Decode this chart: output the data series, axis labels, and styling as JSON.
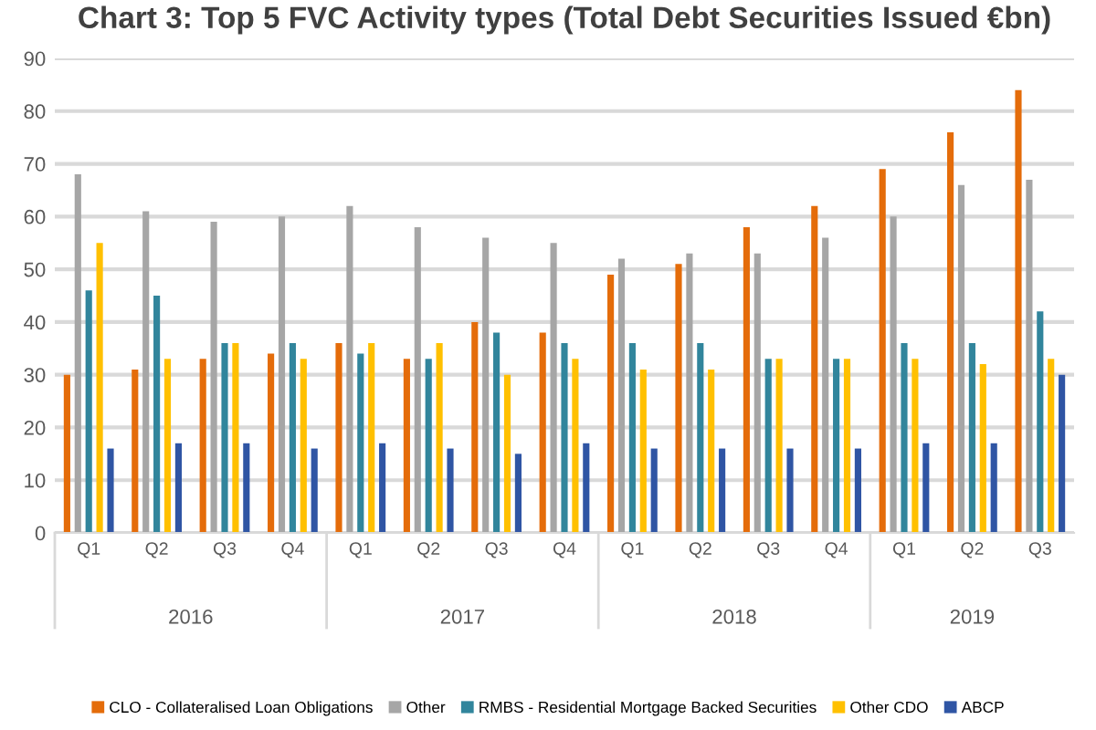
{
  "chart_data": {
    "type": "bar",
    "title": "Chart 3: Top 5 FVC Activity types (Total Debt Securities Issued €bn)",
    "categories": [
      "Q1",
      "Q2",
      "Q3",
      "Q4",
      "Q1",
      "Q2",
      "Q3",
      "Q4",
      "Q1",
      "Q2",
      "Q3",
      "Q4",
      "Q1",
      "Q2",
      "Q3"
    ],
    "series": [
      {
        "name": "CLO - Collateralised Loan Obligations",
        "color": "#e46c0a",
        "values": [
          30,
          31,
          33,
          34,
          36,
          33,
          40,
          38,
          49,
          51,
          58,
          62,
          69,
          76,
          84
        ]
      },
      {
        "name": "Other",
        "color": "#a6a6a6",
        "values": [
          68,
          61,
          59,
          60,
          62,
          58,
          56,
          55,
          52,
          53,
          53,
          56,
          60,
          66,
          67
        ]
      },
      {
        "name": "RMBS - Residential Mortgage Backed Securities",
        "color": "#31859c",
        "values": [
          46,
          45,
          36,
          36,
          34,
          33,
          38,
          36,
          36,
          36,
          33,
          33,
          36,
          36,
          42
        ]
      },
      {
        "name": "Other CDO",
        "color": "#ffc000",
        "values": [
          55,
          33,
          36,
          33,
          36,
          36,
          30,
          33,
          31,
          31,
          33,
          33,
          33,
          32,
          33
        ]
      },
      {
        "name": "ABCP",
        "color": "#2f55a4",
        "values": [
          16,
          17,
          17,
          16,
          17,
          16,
          15,
          17,
          16,
          16,
          16,
          16,
          17,
          17,
          30
        ]
      }
    ],
    "ylim": [
      0,
      90
    ],
    "yticks": [
      0,
      10,
      20,
      30,
      40,
      50,
      60,
      70,
      80,
      90
    ],
    "grid": "y",
    "legend": "bottom",
    "annotations": [
      "2016",
      "2017",
      "2018",
      "2019"
    ]
  }
}
